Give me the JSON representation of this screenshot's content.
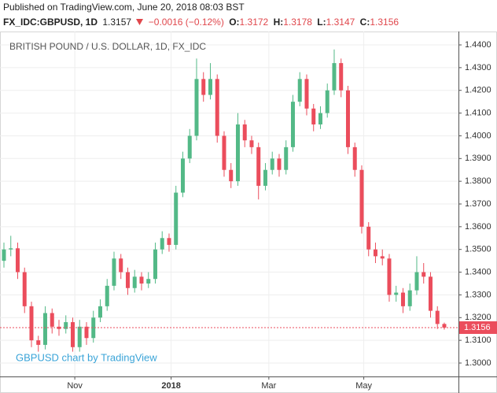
{
  "header": {
    "published": "Published on TradingView.com, June 20, 2018 08:03 BST",
    "symbol": "FX_IDC:GBPUSD, 1D",
    "price": "1.3157",
    "change": "−0.0016 (−0.12%)",
    "ohlc": [
      {
        "label": "O:",
        "value": "1.3172"
      },
      {
        "label": "H:",
        "value": "1.3178"
      },
      {
        "label": "L:",
        "value": "1.3147"
      },
      {
        "label": "C:",
        "value": "1.3156"
      }
    ]
  },
  "chart_data": {
    "type": "candlestick",
    "title": "BRITISH POUND / U.S. DOLLAR, 1D, FX_IDC",
    "watermark": "GBPUSD chart by TradingView",
    "up_color": "#53b987",
    "down_color": "#eb4d5c",
    "grid": true,
    "open": [
      1.345,
      1.35,
      1.3505,
      1.34,
      1.325,
      1.31,
      1.308,
      1.322,
      1.316,
      1.315,
      1.318,
      1.307,
      1.316,
      1.311,
      1.32,
      1.325,
      1.334,
      1.346,
      1.34,
      1.333,
      1.338,
      1.335,
      1.337,
      1.35,
      1.355,
      1.352,
      1.375,
      1.39,
      1.4,
      1.425,
      1.418,
      1.425,
      1.4,
      1.385,
      1.38,
      1.405,
      1.398,
      1.395,
      1.378,
      1.385,
      1.39,
      1.385,
      1.395,
      1.415,
      1.425,
      1.412,
      1.405,
      1.41,
      1.42,
      1.432,
      1.42,
      1.395,
      1.385,
      1.36,
      1.35,
      1.347,
      1.346,
      1.33,
      1.331,
      1.325,
      1.332,
      1.34,
      1.338,
      1.323,
      1.3172
    ],
    "high": [
      1.353,
      1.356,
      1.353,
      1.342,
      1.327,
      1.312,
      1.325,
      1.324,
      1.319,
      1.321,
      1.32,
      1.319,
      1.318,
      1.323,
      1.328,
      1.337,
      1.349,
      1.348,
      1.342,
      1.341,
      1.34,
      1.34,
      1.353,
      1.358,
      1.357,
      1.378,
      1.393,
      1.403,
      1.434,
      1.428,
      1.432,
      1.427,
      1.402,
      1.388,
      1.41,
      1.407,
      1.4,
      1.397,
      1.388,
      1.393,
      1.392,
      1.398,
      1.418,
      1.428,
      1.427,
      1.414,
      1.413,
      1.423,
      1.438,
      1.434,
      1.422,
      1.397,
      1.387,
      1.362,
      1.353,
      1.35,
      1.348,
      1.334,
      1.333,
      1.335,
      1.347,
      1.344,
      1.34,
      1.325,
      1.3178
    ],
    "low": [
      1.342,
      1.347,
      1.337,
      1.322,
      1.307,
      1.305,
      1.306,
      1.313,
      1.312,
      1.313,
      1.305,
      1.305,
      1.308,
      1.309,
      1.318,
      1.323,
      1.332,
      1.337,
      1.33,
      1.331,
      1.332,
      1.333,
      1.335,
      1.348,
      1.349,
      1.35,
      1.373,
      1.388,
      1.398,
      1.415,
      1.416,
      1.397,
      1.382,
      1.377,
      1.378,
      1.395,
      1.392,
      1.372,
      1.376,
      1.383,
      1.382,
      1.383,
      1.393,
      1.413,
      1.409,
      1.402,
      1.403,
      1.408,
      1.418,
      1.417,
      1.392,
      1.382,
      1.357,
      1.347,
      1.344,
      1.343,
      1.327,
      1.327,
      1.322,
      1.323,
      1.33,
      1.335,
      1.32,
      1.315,
      1.3147
    ],
    "close": [
      1.35,
      1.3505,
      1.34,
      1.325,
      1.31,
      1.308,
      1.322,
      1.316,
      1.315,
      1.318,
      1.307,
      1.316,
      1.311,
      1.32,
      1.325,
      1.334,
      1.346,
      1.34,
      1.333,
      1.338,
      1.335,
      1.337,
      1.35,
      1.355,
      1.352,
      1.375,
      1.39,
      1.4,
      1.425,
      1.418,
      1.425,
      1.4,
      1.385,
      1.38,
      1.405,
      1.398,
      1.395,
      1.378,
      1.385,
      1.39,
      1.385,
      1.395,
      1.415,
      1.425,
      1.412,
      1.405,
      1.41,
      1.42,
      1.432,
      1.42,
      1.395,
      1.385,
      1.36,
      1.35,
      1.347,
      1.346,
      1.33,
      1.331,
      1.325,
      1.332,
      1.34,
      1.338,
      1.323,
      1.3172,
      1.3156
    ],
    "xlim": [
      -0.57,
      66.06
    ],
    "xticks": [
      {
        "value": 10.3,
        "label": "Nov"
      },
      {
        "value": 24.3,
        "label": "2018"
      },
      {
        "value": 38.5,
        "label": "Mar"
      },
      {
        "value": 52.3,
        "label": "May"
      }
    ],
    "ylim": [
      1.2941,
      1.4459
    ],
    "yticks": [
      {
        "value": 1.3,
        "label": "1.3000"
      },
      {
        "value": 1.31,
        "label": "1.3100"
      },
      {
        "value": 1.32,
        "label": "1.3200"
      },
      {
        "value": 1.33,
        "label": "1.3300"
      },
      {
        "value": 1.34,
        "label": "1.3400"
      },
      {
        "value": 1.35,
        "label": "1.3500"
      },
      {
        "value": 1.36,
        "label": "1.3600"
      },
      {
        "value": 1.37,
        "label": "1.3700"
      },
      {
        "value": 1.38,
        "label": "1.3800"
      },
      {
        "value": 1.39,
        "label": "1.3900"
      },
      {
        "value": 1.4,
        "label": "1.4000"
      },
      {
        "value": 1.41,
        "label": "1.4100"
      },
      {
        "value": 1.42,
        "label": "1.4200"
      },
      {
        "value": 1.43,
        "label": "1.4300"
      },
      {
        "value": 1.44,
        "label": "1.4400"
      }
    ]
  }
}
